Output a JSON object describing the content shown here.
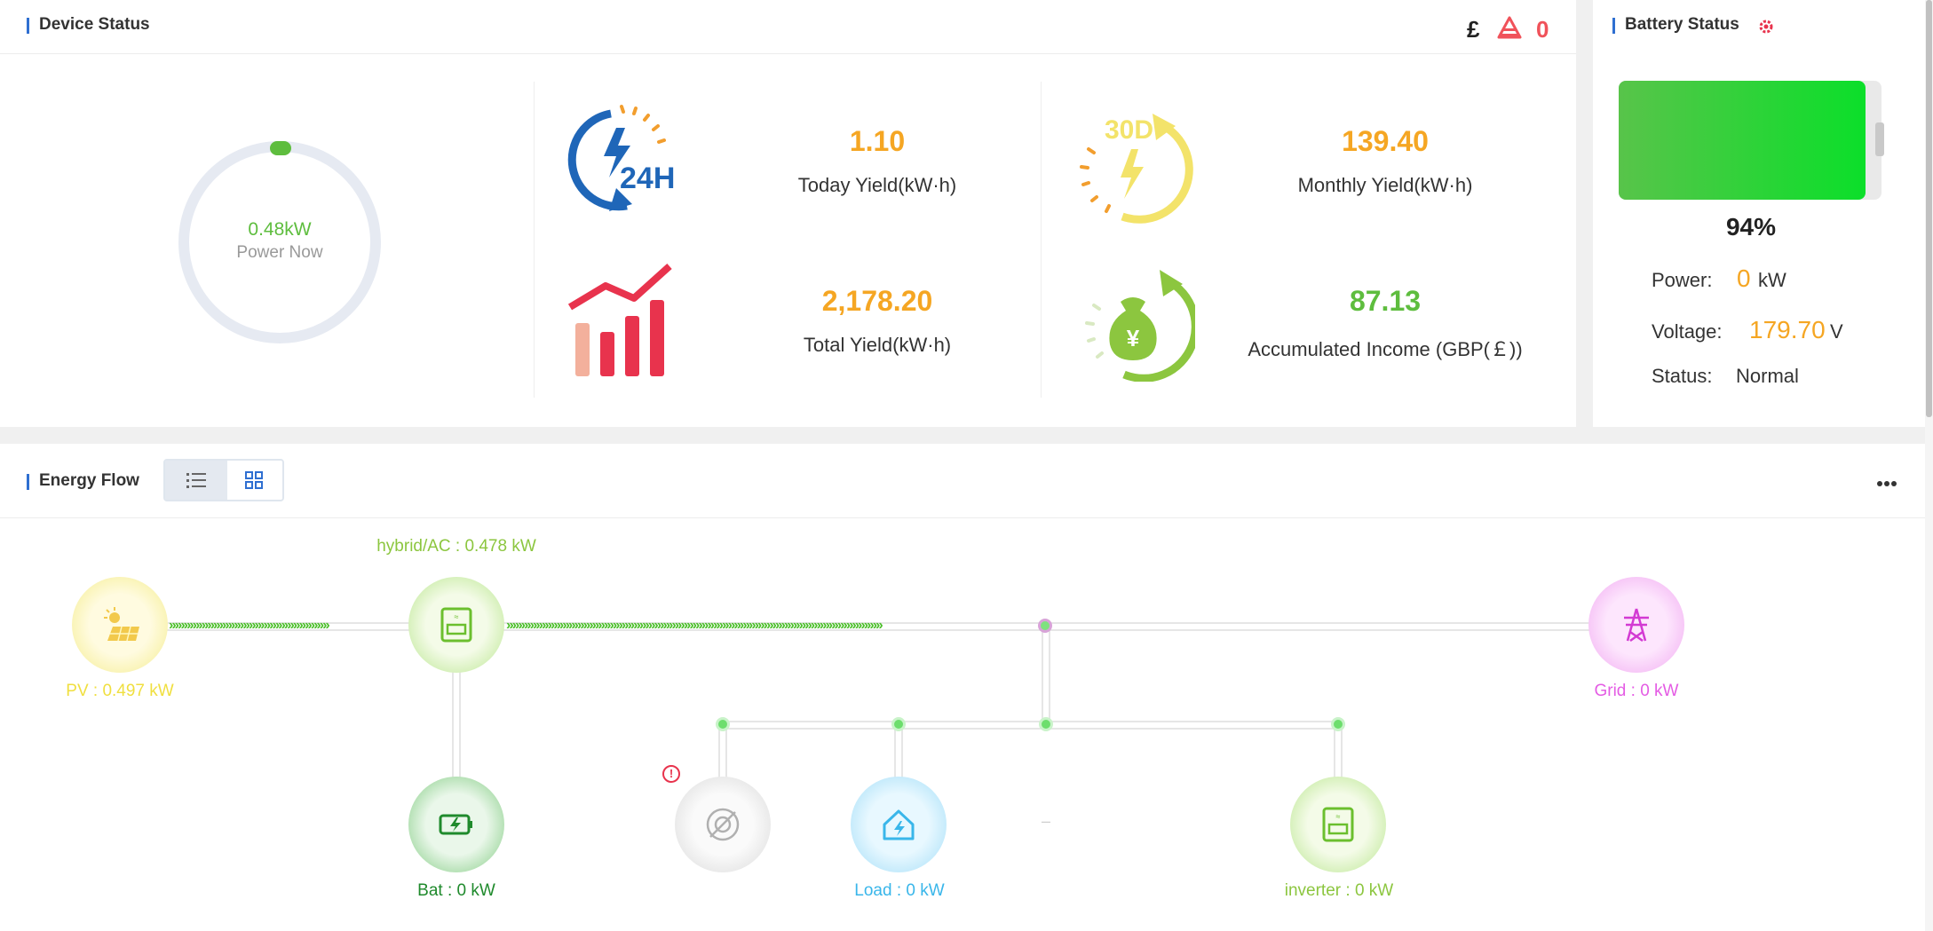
{
  "device_status": {
    "title": "Device Status",
    "currency_symbol": "£",
    "alarm_count": "0",
    "power_now_value": "0.48kW",
    "power_now_label": "Power Now",
    "today_yield_value": "1.10",
    "today_yield_label": "Today Yield(kW·h)",
    "today_icon_text": "24H",
    "monthly_yield_value": "139.40",
    "monthly_yield_label": "Monthly Yield(kW·h)",
    "monthly_icon_text": "30D",
    "total_yield_value": "2,178.20",
    "total_yield_label": "Total Yield(kW·h)",
    "income_value": "87.13",
    "income_label": "Accumulated Income (GBP(￡))",
    "income_icon_text": "¥"
  },
  "battery_status": {
    "title": "Battery Status",
    "soc_percent": "94%",
    "soc_fraction": 0.94,
    "power_label": "Power:",
    "power_value": "0",
    "power_unit": "kW",
    "voltage_label": "Voltage:",
    "voltage_value": "179.70",
    "voltage_unit": "V",
    "status_label": "Status:",
    "status_value": "Normal"
  },
  "energy_flow": {
    "title": "Energy Flow",
    "view_list_icon": "list-icon",
    "view_grid_icon": "grid-icon",
    "more_icon": "more-icon",
    "hybrid_label": "hybrid/AC : 0.478 kW",
    "pv_label": "PV : 0.497 kW",
    "grid_label": "Grid : 0 kW",
    "bat_label": "Bat : 0 kW",
    "load_label": "Load : 0 kW",
    "inverter_label": "inverter : 0 kW",
    "alert_mark": "!",
    "dash_mark": "–"
  },
  "colors": {
    "accent_orange": "#f5a623",
    "accent_green": "#5ebd3e",
    "alarm_red": "#f0525a",
    "pv_yellow": "#f2e15c",
    "grid_magenta": "#e45ce4",
    "load_blue": "#39b6ea",
    "bat_green": "#1f8a2c"
  }
}
